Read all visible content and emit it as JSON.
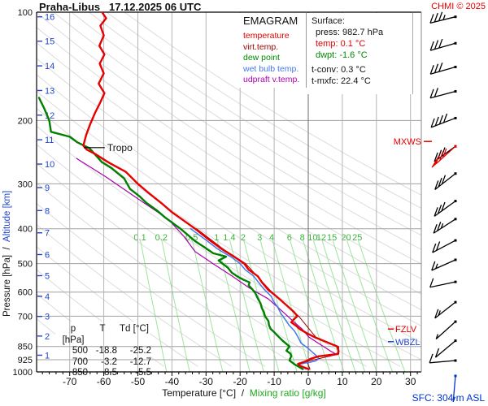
{
  "header": {
    "title": "Praha-Libus   17.12.2025 06 UTC",
    "copyright": "CHMI © 2025"
  },
  "legend": {
    "title": "EMAGRAM",
    "items": [
      {
        "label": "temperature",
        "color": "#e60000"
      },
      {
        "label": "virt.temp.",
        "color": "#990000"
      },
      {
        "label": "dew point",
        "color": "#008a00"
      },
      {
        "label": "wet bulb temp.",
        "color": "#4477ee"
      },
      {
        "label": "udpraft v.temp.",
        "color": "#b000b0"
      }
    ]
  },
  "surface_panel": {
    "title": "Surface:",
    "press": "press: 982.7 hPa",
    "temp": "temp: 0.1 °C",
    "dwpt": "dwpt: -1.6 °C",
    "tconv": "t-conv: 0.3 °C",
    "tmxfc": "t-mxfc: 22.4 °C",
    "temp_color": "#e60000",
    "dwpt_color": "#008a00"
  },
  "levels_table": {
    "headers": [
      "p [hPa]",
      "T",
      "Td [°C]"
    ],
    "rows": [
      [
        "500",
        "-18.8",
        "-25.2"
      ],
      [
        "700",
        "-3.2",
        "-12.7"
      ],
      [
        "850",
        "8.5",
        "-5.5"
      ]
    ]
  },
  "axes": {
    "x_caption_black": "Temperature [°C]",
    "x_caption_sep": "  /  ",
    "x_caption_green": "Mixing ratio [g/kg]",
    "y_caption_black": "Pressure [hPa]",
    "y_caption_sep": "  /  ",
    "y_caption_blue": "Altitude [km]"
  },
  "markers": {
    "tropo": {
      "label": "Tropo",
      "p": 238,
      "t_at": -65.9
    },
    "mxws": {
      "label": "MXWS",
      "p": 236,
      "color": "#e60000"
    },
    "fzlv": {
      "label": "FZLV",
      "p": 760,
      "color": "#e60000"
    },
    "wbzl": {
      "label": "WBZL",
      "p": 824,
      "color": "#2244cc"
    },
    "sfc_label": "SFC: 304 m ASL"
  },
  "chart_data": {
    "type": "line",
    "title": "Praha-Libus 17.12.2025 06 UTC emagram sounding",
    "x_axis": {
      "label": "Temperature [°C]",
      "min": -79.7,
      "max": 33.2,
      "ticks": [
        -70,
        -60,
        -50,
        -40,
        -30,
        -20,
        -10,
        0,
        10,
        20,
        30
      ]
    },
    "y_axis": {
      "label": "Pressure [hPa]",
      "scale": "log",
      "min": 100,
      "max": 1000,
      "ticks": [
        100,
        200,
        300,
        400,
        500,
        600,
        700,
        850,
        925,
        1000
      ]
    },
    "altitude_ticks": [
      {
        "km": 16,
        "p": 103
      },
      {
        "km": 15,
        "p": 120.4
      },
      {
        "km": 14,
        "p": 141
      },
      {
        "km": 13,
        "p": 165.1
      },
      {
        "km": 12,
        "p": 193.3
      },
      {
        "km": 11,
        "p": 226.3
      },
      {
        "km": 10,
        "p": 264.4
      },
      {
        "km": 9,
        "p": 307.4
      },
      {
        "km": 8,
        "p": 356
      },
      {
        "km": 7,
        "p": 410.6
      },
      {
        "km": 6,
        "p": 471.8
      },
      {
        "km": 5,
        "p": 540.2
      },
      {
        "km": 4,
        "p": 616.4
      },
      {
        "km": 3,
        "p": 701.1
      },
      {
        "km": 2,
        "p": 795
      },
      {
        "km": 1,
        "p": 898.7
      }
    ],
    "series": [
      {
        "name": "udpraft v.temp.",
        "color": "#aa00aa",
        "width": 1.2,
        "points": [
          [
            255,
            -68
          ],
          [
            287,
            -59.4
          ],
          [
            330,
            -50
          ],
          [
            377,
            -41
          ],
          [
            420,
            -36.5
          ],
          [
            463,
            -33.2
          ],
          [
            500,
            -28
          ],
          [
            540,
            -22.5
          ],
          [
            585,
            -17.2
          ],
          [
            627,
            -11.7
          ],
          [
            680,
            -7.5
          ],
          [
            722,
            -4.5
          ],
          [
            760,
            -1.8
          ],
          [
            800,
            0.2
          ],
          [
            830,
            2.8
          ],
          [
            856,
            5
          ],
          [
            875,
            6.5
          ],
          [
            892,
            8.1
          ]
        ]
      },
      {
        "name": "virt.temp.",
        "color": "#990000",
        "width": 1.0,
        "points": [
          [
            400,
            -32.8
          ],
          [
            456,
            -24.9
          ],
          [
            500,
            -18.4
          ],
          [
            592,
            -11.3
          ],
          [
            700,
            -2.8
          ],
          [
            800,
            2.2
          ],
          [
            850,
            8.9
          ],
          [
            892,
            9.0
          ],
          [
            935,
            -0.4
          ],
          [
            982.7,
            0.5
          ]
        ]
      },
      {
        "name": "wet bulb temp.",
        "color": "#4477ee",
        "width": 1.5,
        "points": [
          [
            400,
            -34.5
          ],
          [
            430,
            -30
          ],
          [
            456,
            -26.5
          ],
          [
            480,
            -22.5
          ],
          [
            500,
            -20
          ],
          [
            520,
            -18.5
          ],
          [
            542,
            -16
          ],
          [
            565,
            -14.5
          ],
          [
            592,
            -12.8
          ],
          [
            617,
            -10.8
          ],
          [
            634,
            -10.3
          ],
          [
            660,
            -9
          ],
          [
            686,
            -8.1
          ],
          [
            710,
            -7
          ],
          [
            740,
            -5.7
          ],
          [
            770,
            -4
          ],
          [
            800,
            -3
          ],
          [
            832,
            -2.1
          ],
          [
            860,
            0
          ],
          [
            885,
            1.4
          ],
          [
            900,
            2.3
          ],
          [
            913,
            2.9
          ],
          [
            925,
            2.8
          ],
          [
            932,
            2.1
          ],
          [
            940,
            0.5
          ],
          [
            945,
            -1
          ],
          [
            952,
            -2.5
          ],
          [
            960,
            -3
          ],
          [
            970,
            -1.5
          ],
          [
            982.7,
            -0.7
          ]
        ]
      },
      {
        "name": "dew point",
        "color": "#007f00",
        "width": 2.4,
        "points": [
          [
            173,
            -79
          ],
          [
            185,
            -77.5
          ],
          [
            200,
            -76
          ],
          [
            215,
            -75.5
          ],
          [
            222,
            -70
          ],
          [
            230,
            -67.8
          ],
          [
            239,
            -64.2
          ],
          [
            252,
            -62
          ],
          [
            261,
            -60.6
          ],
          [
            271,
            -57.8
          ],
          [
            290,
            -54
          ],
          [
            310,
            -52.3
          ],
          [
            325,
            -49.5
          ],
          [
            339,
            -47.5
          ],
          [
            355,
            -44.5
          ],
          [
            372,
            -42
          ],
          [
            400,
            -37.5
          ],
          [
            433,
            -33.2
          ],
          [
            450,
            -30.5
          ],
          [
            468,
            -27.9
          ],
          [
            478,
            -24.1
          ],
          [
            490,
            -26.3
          ],
          [
            500,
            -25.2
          ],
          [
            513,
            -23.6
          ],
          [
            530,
            -22.4
          ],
          [
            545,
            -20.5
          ],
          [
            555,
            -18.9
          ],
          [
            564,
            -17.2
          ],
          [
            575,
            -17.5
          ],
          [
            588,
            -16.5
          ],
          [
            605,
            -15.5
          ],
          [
            625,
            -14.8
          ],
          [
            645,
            -14
          ],
          [
            665,
            -13.6
          ],
          [
            682,
            -13
          ],
          [
            700,
            -12.7
          ],
          [
            722,
            -11.7
          ],
          [
            742,
            -11.5
          ],
          [
            760,
            -11
          ],
          [
            775,
            -10
          ],
          [
            788,
            -9.3
          ],
          [
            805,
            -8.3
          ],
          [
            821,
            -7.4
          ],
          [
            850,
            -5.5
          ],
          [
            862,
            -6
          ],
          [
            873,
            -6.4
          ],
          [
            890,
            -5.2
          ],
          [
            906,
            -5
          ],
          [
            918,
            -5.3
          ],
          [
            930,
            -5.5
          ],
          [
            945,
            -4.5
          ],
          [
            952,
            -4.1
          ],
          [
            965,
            -3
          ],
          [
            982.7,
            -1.6
          ]
        ]
      },
      {
        "name": "temperature",
        "color": "#e60000",
        "width": 2.4,
        "points": [
          [
            100,
            -60.5
          ],
          [
            104,
            -59.3
          ],
          [
            109,
            -61
          ],
          [
            116,
            -60
          ],
          [
            124,
            -61.3
          ],
          [
            131,
            -59.8
          ],
          [
            139,
            -61.2
          ],
          [
            148,
            -60
          ],
          [
            158,
            -61.5
          ],
          [
            168,
            -59.8
          ],
          [
            178,
            -61
          ],
          [
            190,
            -62.5
          ],
          [
            205,
            -64
          ],
          [
            220,
            -65.2
          ],
          [
            235,
            -66
          ],
          [
            241,
            -65
          ],
          [
            248,
            -62.5
          ],
          [
            262,
            -58.5
          ],
          [
            278,
            -53.5
          ],
          [
            300,
            -50
          ],
          [
            320,
            -46.5
          ],
          [
            340,
            -43
          ],
          [
            360,
            -40
          ],
          [
            380,
            -36.5
          ],
          [
            400,
            -33.2
          ],
          [
            430,
            -29
          ],
          [
            456,
            -25.3
          ],
          [
            480,
            -21.5
          ],
          [
            500,
            -18.8
          ],
          [
            520,
            -17.5
          ],
          [
            542,
            -14.8
          ],
          [
            565,
            -13.5
          ],
          [
            592,
            -11.7
          ],
          [
            617,
            -9.3
          ],
          [
            645,
            -7
          ],
          [
            680,
            -4.3
          ],
          [
            700,
            -3.2
          ],
          [
            715,
            -4.3
          ],
          [
            728,
            -5
          ],
          [
            745,
            -3.5
          ],
          [
            760,
            -2.5
          ],
          [
            780,
            -0.5
          ],
          [
            800,
            1.8
          ],
          [
            820,
            4.5
          ],
          [
            850,
            8.5
          ],
          [
            875,
            8.9
          ],
          [
            892,
            8.6
          ],
          [
            905,
            3
          ],
          [
            920,
            0.6
          ],
          [
            935,
            -0.8
          ],
          [
            950,
            -3
          ],
          [
            962,
            -2.4
          ],
          [
            972,
            -1.2
          ],
          [
            982.7,
            0.1
          ]
        ]
      }
    ],
    "mixing_ratio": {
      "values": [
        0.1,
        0.2,
        0.5,
        1,
        1.4,
        2,
        3,
        4,
        6,
        8,
        10,
        12,
        15,
        20,
        25
      ],
      "label_p": 424,
      "top_p": 432,
      "bottom_p": 1000,
      "line_color": "#9ce69c",
      "label_color": "#3cb43c"
    },
    "dry_adiabats": {
      "theta_min": -60,
      "theta_max": 150,
      "step": 10,
      "color": "#dcdcdc"
    },
    "grid": {
      "isotherm_color": "#b4b4b4",
      "zero_isotherm_color": "#6e6e6e",
      "isobar_color": "#a0a0a0",
      "border_color": "#000000",
      "altitude_color": "#2244cc"
    },
    "wind_barbs": {
      "station_x": 560,
      "staff_len": 32,
      "levels": [
        {
          "p": 103,
          "angle": 14,
          "full": 3,
          "half": 1,
          "pennant": 0,
          "color": "#000000"
        },
        {
          "p": 122,
          "angle": 16,
          "full": 3,
          "half": 0,
          "pennant": 0,
          "color": "#000000"
        },
        {
          "p": 142,
          "angle": 16,
          "full": 3,
          "half": 0,
          "pennant": 0,
          "color": "#000000"
        },
        {
          "p": 166,
          "angle": 15,
          "full": 2,
          "half": 0,
          "pennant": 0,
          "color": "#000000"
        },
        {
          "p": 197,
          "angle": 21,
          "full": 4,
          "half": 0,
          "pennant": 0,
          "color": "#000000"
        },
        {
          "p": 236,
          "angle": 36,
          "full": 3,
          "half": 0,
          "pennant": 0,
          "color": "#000000"
        },
        {
          "p": 236,
          "angle": 42,
          "full": 2,
          "half": 0,
          "pennant": 1,
          "color": "#e60000"
        },
        {
          "p": 281,
          "angle": 38,
          "full": 3,
          "half": 0,
          "pennant": 0,
          "color": "#000000"
        },
        {
          "p": 335,
          "angle": 36,
          "full": 3,
          "half": 0,
          "pennant": 0,
          "color": "#000000"
        },
        {
          "p": 376,
          "angle": 33,
          "full": 2,
          "half": 1,
          "pennant": 0,
          "color": "#000000"
        },
        {
          "p": 431,
          "angle": 28,
          "full": 2,
          "half": 0,
          "pennant": 0,
          "color": "#000000"
        },
        {
          "p": 488,
          "angle": 24,
          "full": 1,
          "half": 1,
          "pennant": 0,
          "color": "#000000"
        },
        {
          "p": 562,
          "angle": 12,
          "full": 1,
          "half": 0,
          "pennant": 0,
          "color": "#000000"
        },
        {
          "p": 640,
          "angle": 38,
          "full": 1,
          "half": 1,
          "pennant": 0,
          "color": "#000000"
        },
        {
          "p": 725,
          "angle": 42,
          "full": 0,
          "half": 1,
          "pennant": 0,
          "color": "#000000"
        },
        {
          "p": 819,
          "angle": 40,
          "full": 1,
          "half": 0,
          "pennant": 0,
          "color": "#000000"
        },
        {
          "p": 930,
          "angle": 5,
          "full": 1,
          "half": 0,
          "pennant": 0,
          "color": "#000000"
        },
        {
          "p": 1026,
          "angle": 85,
          "full": 0,
          "half": 1,
          "pennant": 0,
          "color": "#0033cc"
        }
      ]
    }
  }
}
